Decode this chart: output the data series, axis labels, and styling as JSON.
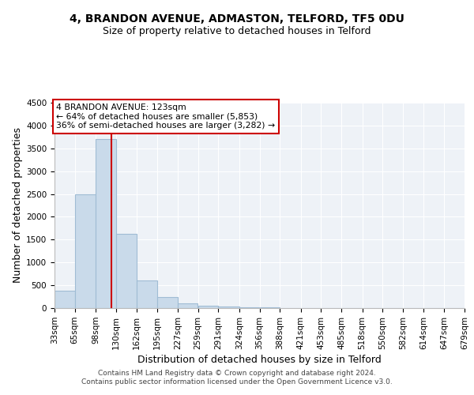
{
  "title1": "4, BRANDON AVENUE, ADMASTON, TELFORD, TF5 0DU",
  "title2": "Size of property relative to detached houses in Telford",
  "xlabel": "Distribution of detached houses by size in Telford",
  "ylabel": "Number of detached properties",
  "bar_edges": [
    33,
    65,
    98,
    130,
    162,
    195,
    227,
    259,
    291,
    324,
    356,
    388,
    421,
    453,
    485,
    518,
    550,
    582,
    614,
    647,
    679
  ],
  "bar_heights": [
    375,
    2500,
    3700,
    1620,
    600,
    250,
    100,
    55,
    30,
    15,
    10,
    6,
    4,
    3,
    2,
    2,
    1,
    1,
    1,
    1
  ],
  "bar_color": "#c9daea",
  "bar_edgecolor": "#a0bcd4",
  "bar_linewidth": 0.8,
  "red_line_x": 123,
  "red_line_color": "#cc0000",
  "annotation_line1": "4 BRANDON AVENUE: 123sqm",
  "annotation_line2": "← 64% of detached houses are smaller (5,853)",
  "annotation_line3": "36% of semi-detached houses are larger (3,282) →",
  "annotation_box_color": "#ffffff",
  "annotation_box_edgecolor": "#cc0000",
  "ylim": [
    0,
    4500
  ],
  "background_color": "#eef2f7",
  "footer_text": "Contains HM Land Registry data © Crown copyright and database right 2024.\nContains public sector information licensed under the Open Government Licence v3.0.",
  "title1_fontsize": 10,
  "title2_fontsize": 9,
  "axis_label_fontsize": 9,
  "tick_fontsize": 7.5,
  "footer_fontsize": 6.5
}
